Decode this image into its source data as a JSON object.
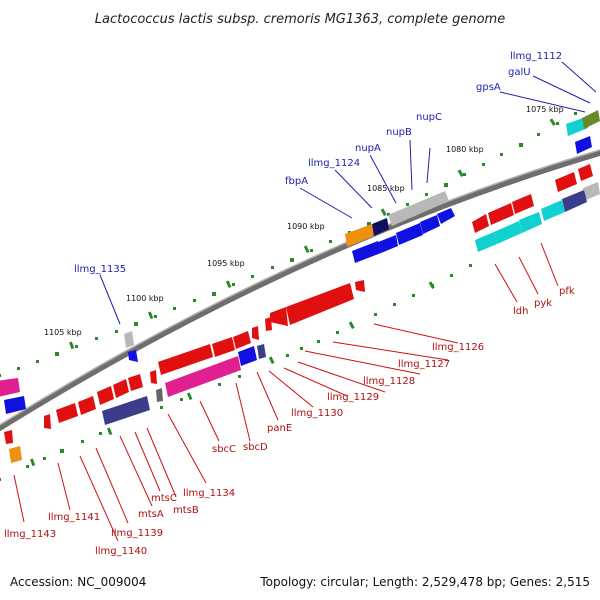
{
  "title": "Lactococcus lactis subsp. cremoris MG1363, complete genome",
  "accession": "Accession: NC_009004",
  "summary": "Topology: circular; Length: 2,529,478 bp; Genes: 2,515",
  "colors": {
    "backbone": "#7a7a7a",
    "tick": "#2a8a2a",
    "forward_label": "#2020b0",
    "reverse_label": "#b01010",
    "red": "#e01010",
    "blue": "#1010e0",
    "navy": "#3c3c8c",
    "gray": "#b8b8b8",
    "orange": "#f09010",
    "cyan": "#10d0d0",
    "magenta": "#e02090",
    "olive": "#6a8a2a",
    "darkblue": "#101060"
  },
  "scale_labels": [
    "1075 kbp",
    "1080 kbp",
    "1085 kbp",
    "1090 kbp",
    "1095 kbp",
    "1100 kbp",
    "1105 kbp"
  ],
  "forward_genes": [
    "llmg_1112",
    "galU",
    "gpsA",
    "nupC",
    "nupB",
    "nupA",
    "llmg_1124",
    "fbpA",
    "llmg_1135"
  ],
  "reverse_genes": [
    "pfk",
    "pyk",
    "ldh",
    "llmg_1126",
    "llmg_1127",
    "llmg_1128",
    "llmg_1129",
    "llmg_1130",
    "panE",
    "sbcD",
    "sbcC",
    "llmg_1134",
    "mtsB",
    "mtsC",
    "mtsA",
    "llmg_1139",
    "llmg_1140",
    "llmg_1141",
    "llmg_1143"
  ]
}
